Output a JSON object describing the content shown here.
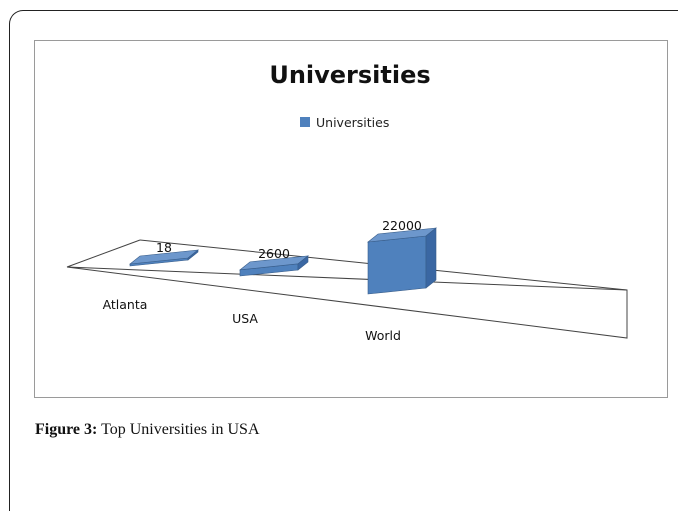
{
  "caption": {
    "label": "Figure 3:",
    "text": " Top Universities in USA"
  },
  "chart_data": {
    "type": "bar",
    "title": "Universities",
    "legend": {
      "entry": "Universities",
      "placement": "top"
    },
    "categories": [
      "Atlanta",
      "USA",
      "World"
    ],
    "series": [
      {
        "name": "Universities",
        "values": [
          18,
          2600,
          22000
        ]
      }
    ],
    "data_labels": [
      "18",
      "2600",
      "22000"
    ],
    "xlabel": "",
    "ylabel": "",
    "ylim": [
      0,
      22000
    ],
    "grid": false,
    "colors": {
      "bar_front": "#4F81BD",
      "bar_top": "#6D97CC",
      "bar_side": "#3A67A3"
    }
  }
}
